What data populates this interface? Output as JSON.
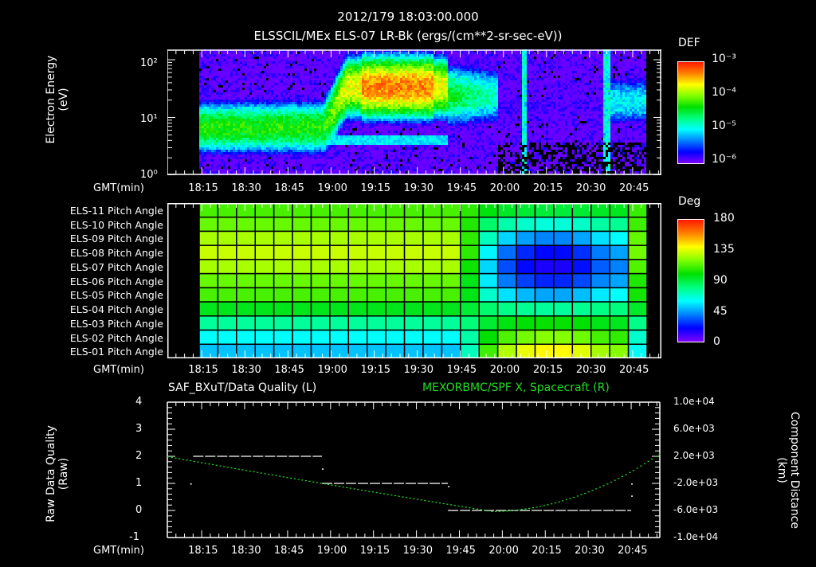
{
  "header": {
    "timestamp": "2012/179 18:03:00.000",
    "title": "ELSSCIL/MEx ELS-07 LR-Bk  (ergs/(cm**2-sr-sec-eV))"
  },
  "panel1": {
    "ylabel_line1": "Electron Energy",
    "ylabel_line2": "(eV)",
    "yticks": [
      "10²",
      "10¹",
      "10⁰"
    ],
    "xlabel": "GMT(min)",
    "colorbar": {
      "title": "DEF",
      "ticks": [
        "10⁻³",
        "10⁻⁴",
        "10⁻⁵",
        "10⁻⁶"
      ]
    }
  },
  "panel2": {
    "row_labels": [
      "ELS-11 Pitch Angle",
      "ELS-10 Pitch Angle",
      "ELS-09 Pitch Angle",
      "ELS-08 Pitch Angle",
      "ELS-07 Pitch Angle",
      "ELS-06 Pitch Angle",
      "ELS-05 Pitch Angle",
      "ELS-04 Pitch Angle",
      "ELS-03 Pitch Angle",
      "ELS-02 Pitch Angle",
      "ELS-01 Pitch Angle"
    ],
    "xlabel": "GMT(min)",
    "colorbar": {
      "title": "Deg",
      "ticks": [
        "180",
        "135",
        "90",
        "45",
        "0"
      ]
    }
  },
  "panel3": {
    "title_left": "SAF_BXuT/Data Quality (L)",
    "title_right": "MEXORBMC/SPF X, Spacecraft (R)",
    "left_color": "#ffffff",
    "right_color": "#22dd22",
    "ylabel_left_line1": "Raw Data Quality",
    "ylabel_left_line2": "(Raw)",
    "yticks_left": [
      "4",
      "3",
      "2",
      "1",
      "0",
      "-1"
    ],
    "ylabel_right_line1": "Component Distance",
    "ylabel_right_line2": "(km)",
    "yticks_right": [
      "1.0e+04",
      "6.0e+03",
      "2.0e+03",
      "-2.0e+03",
      "-6.0e+03",
      "-1.0e+04"
    ],
    "xlabel": "GMT(min)"
  },
  "time_ticks": [
    "18:15",
    "18:30",
    "18:45",
    "19:00",
    "19:15",
    "19:30",
    "19:45",
    "20:00",
    "20:15",
    "20:30",
    "20:45"
  ],
  "chart_data": [
    {
      "type": "heatmap",
      "title": "ELSSCIL/MEx ELS-07 LR-Bk  (ergs/(cm**2-sr-sec-eV))",
      "subtitle": "2012/179 18:03:00.000",
      "xlabel": "GMT(min)",
      "ylabel": "Electron Energy (eV)",
      "yscale": "log",
      "ylim": [
        1,
        150
      ],
      "xlim": [
        "18:03",
        "20:55"
      ],
      "x_ticks": [
        "18:15",
        "18:30",
        "18:45",
        "19:00",
        "19:15",
        "19:30",
        "19:45",
        "20:00",
        "20:15",
        "20:30",
        "20:45"
      ],
      "colorbar": {
        "label": "DEF",
        "scale": "log",
        "range": [
          1e-06,
          0.001
        ]
      },
      "notes": "Data begins ~18:11. Green band ~3-20 eV 18:11-19:00, rising to ~10-100 eV with yellow/orange peak ~19:15-19:30 (~50 eV). Flux drops sharply after ~19:58. Narrow spikes ~20:07, ~20:40-20:44."
    },
    {
      "type": "heatmap",
      "title": "Pitch Angle",
      "xlabel": "GMT(min)",
      "categories": [
        "ELS-11",
        "ELS-10",
        "ELS-09",
        "ELS-08",
        "ELS-07",
        "ELS-06",
        "ELS-05",
        "ELS-04",
        "ELS-03",
        "ELS-02",
        "ELS-01"
      ],
      "colorbar": {
        "label": "Deg",
        "range": [
          0,
          180
        ]
      },
      "series": [
        {
          "name": "18:11-19:50",
          "values": [
            110,
            115,
            125,
            130,
            125,
            115,
            110,
            95,
            75,
            60,
            50
          ]
        },
        {
          "name": "20:00-20:45",
          "values": [
            90,
            65,
            40,
            20,
            15,
            25,
            45,
            75,
            100,
            120,
            140
          ]
        }
      ]
    },
    {
      "type": "line",
      "title": "SAF_BXuT/Data Quality (L) ; MEXORBMC/SPF X, Spacecraft (R)",
      "xlabel": "GMT(min)",
      "x": [
        "18:03",
        "18:15",
        "18:30",
        "18:45",
        "19:00",
        "19:15",
        "19:30",
        "19:45",
        "20:00",
        "20:15",
        "20:30",
        "20:45",
        "20:55"
      ],
      "series": [
        {
          "name": "Raw Data Quality (L)",
          "axis": "left",
          "color": "#ffffff",
          "segments": [
            {
              "x": [
                "18:12",
                "18:57"
              ],
              "y": 2
            },
            {
              "x": [
                "18:57",
                "19:41"
              ],
              "y": 1
            },
            {
              "x": [
                "19:41",
                "20:45"
              ],
              "y": 0
            }
          ],
          "points": [
            {
              "x": "18:11",
              "y": 1
            },
            {
              "x": "20:45",
              "y": 1
            }
          ]
        },
        {
          "name": "SPF X Component Distance (R, km)",
          "axis": "right",
          "color": "#22dd22",
          "values": [
            2000,
            1000,
            -500,
            -2000,
            -3500,
            -4600,
            -5400,
            -6000,
            -6200,
            -5500,
            -3000,
            500,
            2500
          ]
        }
      ],
      "ylim_left": [
        -1,
        4
      ],
      "ylim_right": [
        -10000,
        10000
      ],
      "ylabel_left": "Raw Data Quality (Raw)",
      "ylabel_right": "Component Distance (km)"
    }
  ]
}
